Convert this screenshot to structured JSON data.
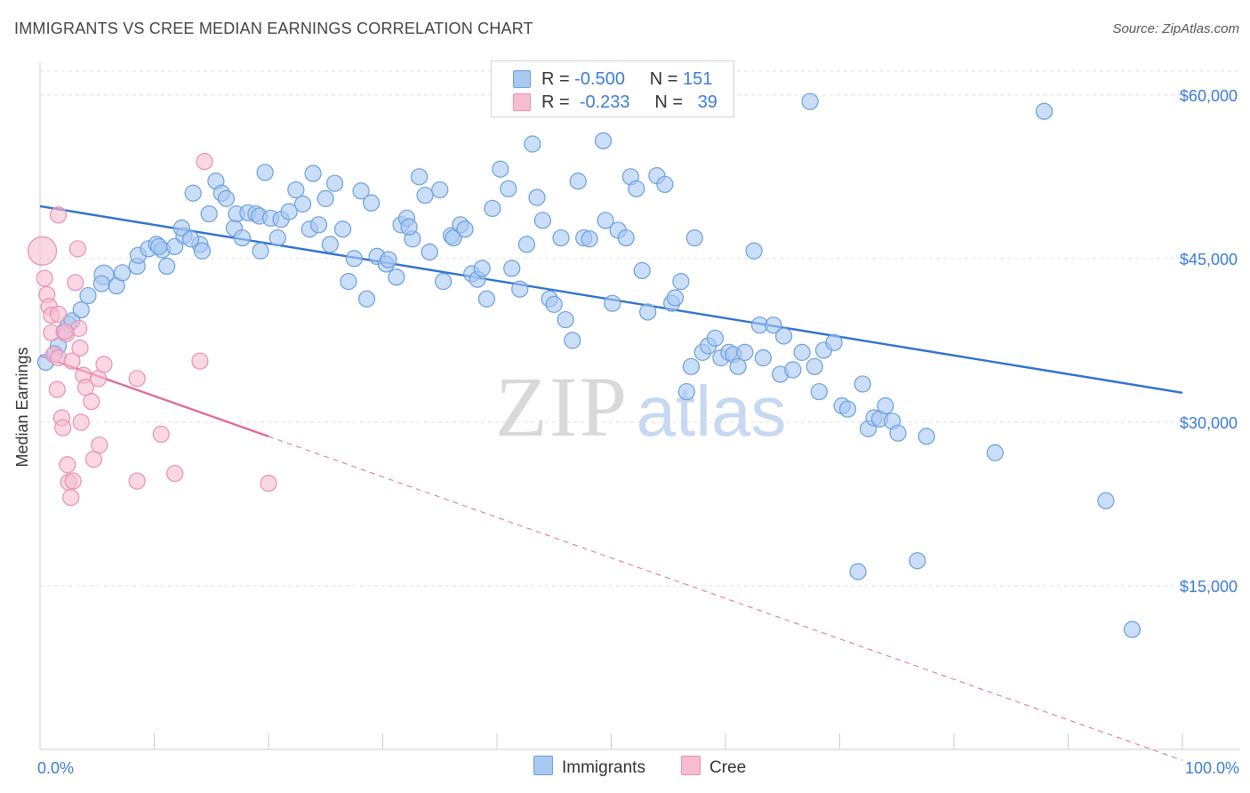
{
  "header": {
    "title": "IMMIGRANTS VS CREE MEDIAN EARNINGS CORRELATION CHART",
    "source": "Source: ZipAtlas.com"
  },
  "legend": {
    "r_label": "R =",
    "n_label": "N =",
    "rows": [
      {
        "r": "-0.500",
        "n": "151",
        "color": "#a9c8f2"
      },
      {
        "r": "-0.233",
        "n": "39",
        "color": "#f7bcd0"
      }
    ]
  },
  "watermark": {
    "zip": "ZIP",
    "atlas": "atlas"
  },
  "colors": {
    "immigrants_fill": "#a9c8f2",
    "immigrants_stroke": "#6a9edb",
    "immigrants_line": "#2f72d0",
    "cree_fill": "#f7bcd0",
    "cree_stroke": "#e890b0",
    "cree_line": "#e06b94",
    "axis_label_blue": "#3b7dd8",
    "grid": "#e2e2e2"
  },
  "chart_data": {
    "type": "scatter",
    "ylabel": "Median Earnings",
    "xlim": [
      0,
      100
    ],
    "ylim": [
      0,
      63000
    ],
    "x_tick_labels": [
      "0.0%",
      "100.0%"
    ],
    "y_ticks": [
      15000,
      30000,
      45000,
      60000
    ],
    "y_tick_labels": [
      "$15,000",
      "$30,000",
      "$45,000",
      "$60,000"
    ],
    "grid": true,
    "legend_position": "top-center",
    "series": [
      {
        "name": "Immigrants",
        "points": [
          [
            0.5,
            35500
          ],
          [
            1.3,
            36300
          ],
          [
            1.6,
            37000
          ],
          [
            2.1,
            38300
          ],
          [
            2.5,
            39000
          ],
          [
            2.8,
            39300
          ],
          [
            3.6,
            40300
          ],
          [
            4.2,
            41600
          ],
          [
            5.6,
            43500
          ],
          [
            5.4,
            42700
          ],
          [
            6.7,
            42500
          ],
          [
            7.2,
            43700
          ],
          [
            8.5,
            44300
          ],
          [
            8.6,
            45300
          ],
          [
            9.5,
            45900
          ],
          [
            10.2,
            46300
          ],
          [
            10.7,
            45800
          ],
          [
            10.4,
            46100
          ],
          [
            11.1,
            44300
          ],
          [
            11.8,
            46100
          ],
          [
            12.6,
            47100
          ],
          [
            12.4,
            47800
          ],
          [
            14.0,
            46300
          ],
          [
            14.2,
            45700
          ],
          [
            13.2,
            46800
          ],
          [
            13.4,
            51000
          ],
          [
            14.8,
            49100
          ],
          [
            15.4,
            52100
          ],
          [
            15.9,
            51000
          ],
          [
            16.3,
            50500
          ],
          [
            17.0,
            47800
          ],
          [
            17.2,
            49100
          ],
          [
            17.7,
            46900
          ],
          [
            18.2,
            49200
          ],
          [
            18.9,
            49100
          ],
          [
            19.2,
            48900
          ],
          [
            19.3,
            45700
          ],
          [
            19.7,
            52900
          ],
          [
            20.2,
            48700
          ],
          [
            20.8,
            46900
          ],
          [
            21.1,
            48600
          ],
          [
            21.8,
            49300
          ],
          [
            22.4,
            51300
          ],
          [
            23.0,
            50000
          ],
          [
            23.6,
            47700
          ],
          [
            23.9,
            52800
          ],
          [
            24.4,
            48100
          ],
          [
            25.0,
            50500
          ],
          [
            25.4,
            46300
          ],
          [
            25.8,
            51900
          ],
          [
            26.5,
            47700
          ],
          [
            27.0,
            42900
          ],
          [
            27.5,
            45000
          ],
          [
            28.1,
            51200
          ],
          [
            28.6,
            41300
          ],
          [
            29.0,
            50100
          ],
          [
            29.5,
            45200
          ],
          [
            30.3,
            44500
          ],
          [
            30.5,
            44900
          ],
          [
            31.2,
            43300
          ],
          [
            31.6,
            48100
          ],
          [
            32.1,
            48700
          ],
          [
            32.6,
            46800
          ],
          [
            32.3,
            47900
          ],
          [
            33.2,
            52500
          ],
          [
            33.7,
            50800
          ],
          [
            34.1,
            45600
          ],
          [
            35.0,
            51300
          ],
          [
            35.3,
            42900
          ],
          [
            36.0,
            47100
          ],
          [
            36.2,
            46900
          ],
          [
            36.8,
            48100
          ],
          [
            37.2,
            47700
          ],
          [
            37.8,
            43600
          ],
          [
            38.3,
            43100
          ],
          [
            38.7,
            44100
          ],
          [
            39.1,
            41300
          ],
          [
            39.6,
            49600
          ],
          [
            40.3,
            53200
          ],
          [
            41.0,
            51400
          ],
          [
            41.3,
            44100
          ],
          [
            42.0,
            42200
          ],
          [
            42.6,
            46300
          ],
          [
            43.1,
            55500
          ],
          [
            43.5,
            50600
          ],
          [
            44.0,
            48500
          ],
          [
            44.6,
            41300
          ],
          [
            45.0,
            40800
          ],
          [
            45.6,
            46900
          ],
          [
            46.0,
            39400
          ],
          [
            46.6,
            37500
          ],
          [
            47.1,
            52100
          ],
          [
            47.6,
            46900
          ],
          [
            48.1,
            46800
          ],
          [
            49.3,
            55800
          ],
          [
            49.5,
            48500
          ],
          [
            50.1,
            40900
          ],
          [
            50.6,
            47600
          ],
          [
            51.3,
            46900
          ],
          [
            51.7,
            52500
          ],
          [
            52.2,
            51400
          ],
          [
            52.7,
            43900
          ],
          [
            53.2,
            40100
          ],
          [
            54.0,
            52600
          ],
          [
            54.7,
            51800
          ],
          [
            55.3,
            40900
          ],
          [
            55.6,
            41400
          ],
          [
            56.1,
            42900
          ],
          [
            56.6,
            32800
          ],
          [
            57.0,
            35100
          ],
          [
            57.3,
            46900
          ],
          [
            58.0,
            36400
          ],
          [
            58.5,
            37000
          ],
          [
            59.1,
            37700
          ],
          [
            59.6,
            35900
          ],
          [
            60.3,
            36400
          ],
          [
            60.7,
            36200
          ],
          [
            61.1,
            35100
          ],
          [
            61.7,
            36400
          ],
          [
            62.5,
            45700
          ],
          [
            63.0,
            38900
          ],
          [
            63.3,
            35900
          ],
          [
            64.2,
            38900
          ],
          [
            64.8,
            34400
          ],
          [
            65.1,
            37900
          ],
          [
            65.9,
            34800
          ],
          [
            66.7,
            36400
          ],
          [
            67.8,
            35100
          ],
          [
            68.2,
            32800
          ],
          [
            68.6,
            36600
          ],
          [
            69.5,
            37300
          ],
          [
            70.2,
            31500
          ],
          [
            70.7,
            31200
          ],
          [
            72.0,
            33500
          ],
          [
            72.5,
            29400
          ],
          [
            73.0,
            30400
          ],
          [
            73.5,
            30300
          ],
          [
            74.0,
            31500
          ],
          [
            74.6,
            30100
          ],
          [
            75.1,
            29000
          ],
          [
            77.6,
            28700
          ],
          [
            83.6,
            27200
          ],
          [
            67.4,
            59400
          ],
          [
            87.9,
            58500
          ],
          [
            71.6,
            16300
          ],
          [
            76.8,
            17300
          ],
          [
            93.3,
            22800
          ],
          [
            95.6,
            11000
          ]
        ]
      },
      {
        "name": "Cree",
        "points": [
          [
            0.2,
            45700
          ],
          [
            0.4,
            43200
          ],
          [
            0.6,
            41700
          ],
          [
            0.8,
            40600
          ],
          [
            1.0,
            38200
          ],
          [
            1.0,
            39800
          ],
          [
            1.2,
            36200
          ],
          [
            1.5,
            33000
          ],
          [
            1.6,
            35900
          ],
          [
            1.6,
            39900
          ],
          [
            1.6,
            49000
          ],
          [
            1.9,
            30400
          ],
          [
            2.0,
            29500
          ],
          [
            2.3,
            38100
          ],
          [
            2.4,
            26100
          ],
          [
            2.5,
            24500
          ],
          [
            2.7,
            23100
          ],
          [
            2.8,
            35600
          ],
          [
            2.9,
            24600
          ],
          [
            3.1,
            42800
          ],
          [
            3.3,
            45900
          ],
          [
            3.4,
            38600
          ],
          [
            3.6,
            30000
          ],
          [
            3.8,
            34300
          ],
          [
            4.0,
            33200
          ],
          [
            4.5,
            31900
          ],
          [
            4.7,
            26600
          ],
          [
            5.1,
            34000
          ],
          [
            5.2,
            27900
          ],
          [
            5.6,
            35300
          ],
          [
            8.5,
            24600
          ],
          [
            8.5,
            34000
          ],
          [
            10.6,
            28900
          ],
          [
            11.8,
            25300
          ],
          [
            14.0,
            35600
          ],
          [
            14.4,
            53900
          ],
          [
            20.0,
            24400
          ],
          [
            2.2,
            38300
          ],
          [
            3.5,
            36800
          ]
        ]
      }
    ],
    "trendlines": [
      {
        "series": "Immigrants",
        "x": [
          0,
          100
        ],
        "y": [
          49800,
          32700
        ]
      },
      {
        "series": "Cree",
        "x": [
          0,
          20
        ],
        "y": [
          36100,
          28700
        ]
      },
      {
        "series": "Cree",
        "x": [
          20,
          100
        ],
        "y": [
          28700,
          -1000
        ],
        "style": "dashed"
      }
    ]
  }
}
